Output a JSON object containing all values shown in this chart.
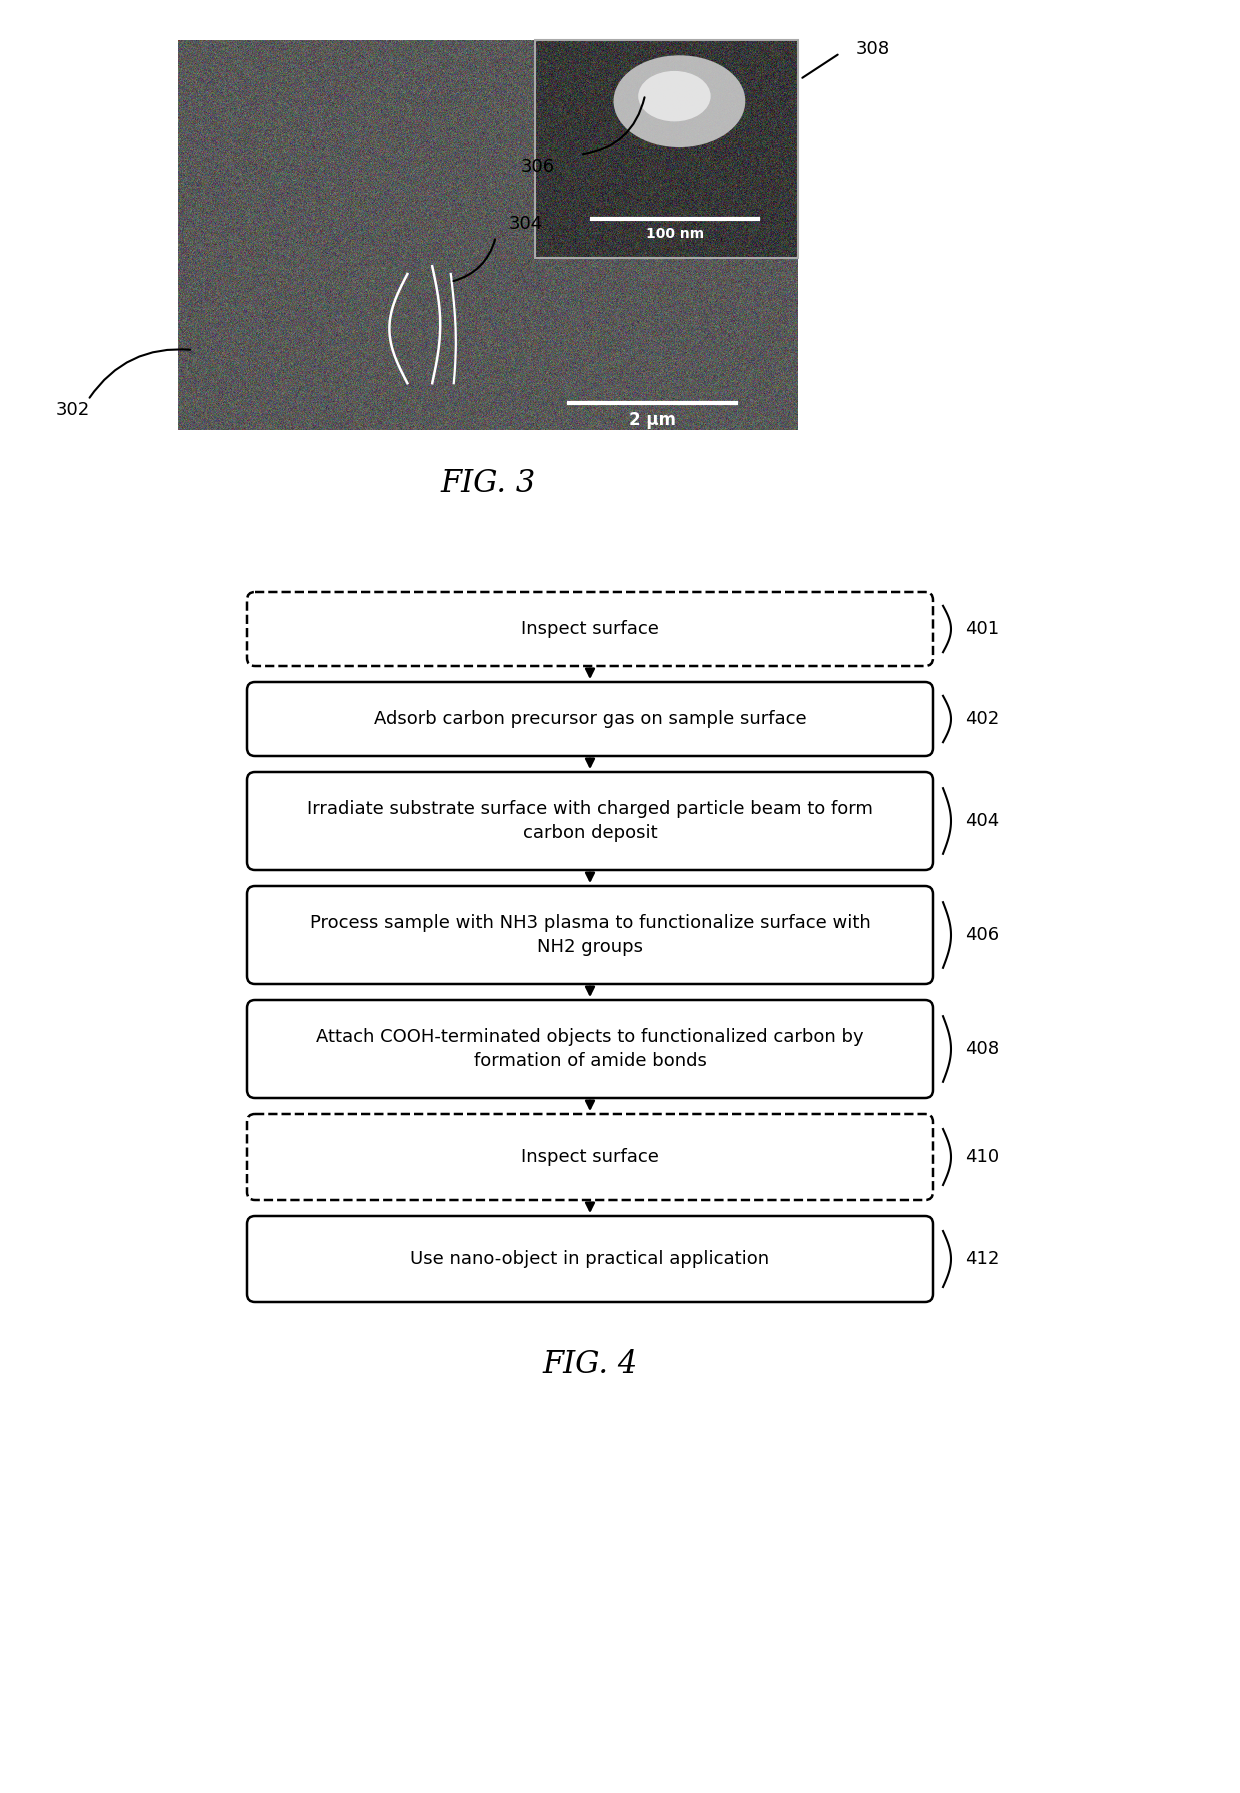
{
  "fig3_label": "FIG. 3",
  "fig4_label": "FIG. 4",
  "ref_302": "302",
  "ref_304": "304",
  "ref_306": "306",
  "ref_308": "308",
  "ref_401": "401",
  "ref_402": "402",
  "ref_404": "404",
  "ref_406": "406",
  "ref_408": "408",
  "ref_410": "410",
  "ref_412": "412",
  "box_401_text": "Inspect surface",
  "box_402_text": "Adsorb carbon precursor gas on sample surface",
  "box_404_text": "Irradiate substrate surface with charged particle beam to form\ncarbon deposit",
  "box_406_text": "Process sample with NH3 plasma to functionalize surface with\nNH2 groups",
  "box_408_text": "Attach COOH-terminated objects to functionalized carbon by\nformation of amide bonds",
  "box_410_text": "Inspect surface",
  "box_412_text": "Use nano-object in practical application",
  "scalebar_main": "2 μm",
  "scalebar_inset": "100 nm",
  "background_color": "#ffffff"
}
